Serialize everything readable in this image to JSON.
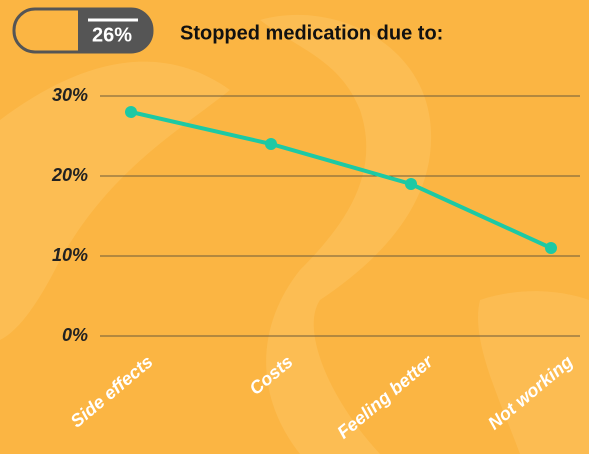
{
  "chart_data": {
    "type": "line",
    "title": "Stopped medication due to:",
    "badge": "26%",
    "categories": [
      "Side effects",
      "Costs",
      "Feeling better",
      "Not working"
    ],
    "values": [
      28,
      24,
      19,
      11
    ],
    "color": "#1dc9a4",
    "ylim": [
      0,
      30
    ],
    "yticks": [
      {
        "value": 0,
        "label": "0%"
      },
      {
        "value": 10,
        "label": "10%"
      },
      {
        "value": 20,
        "label": "20%"
      },
      {
        "value": 30,
        "label": "30%"
      }
    ],
    "grid": true
  }
}
